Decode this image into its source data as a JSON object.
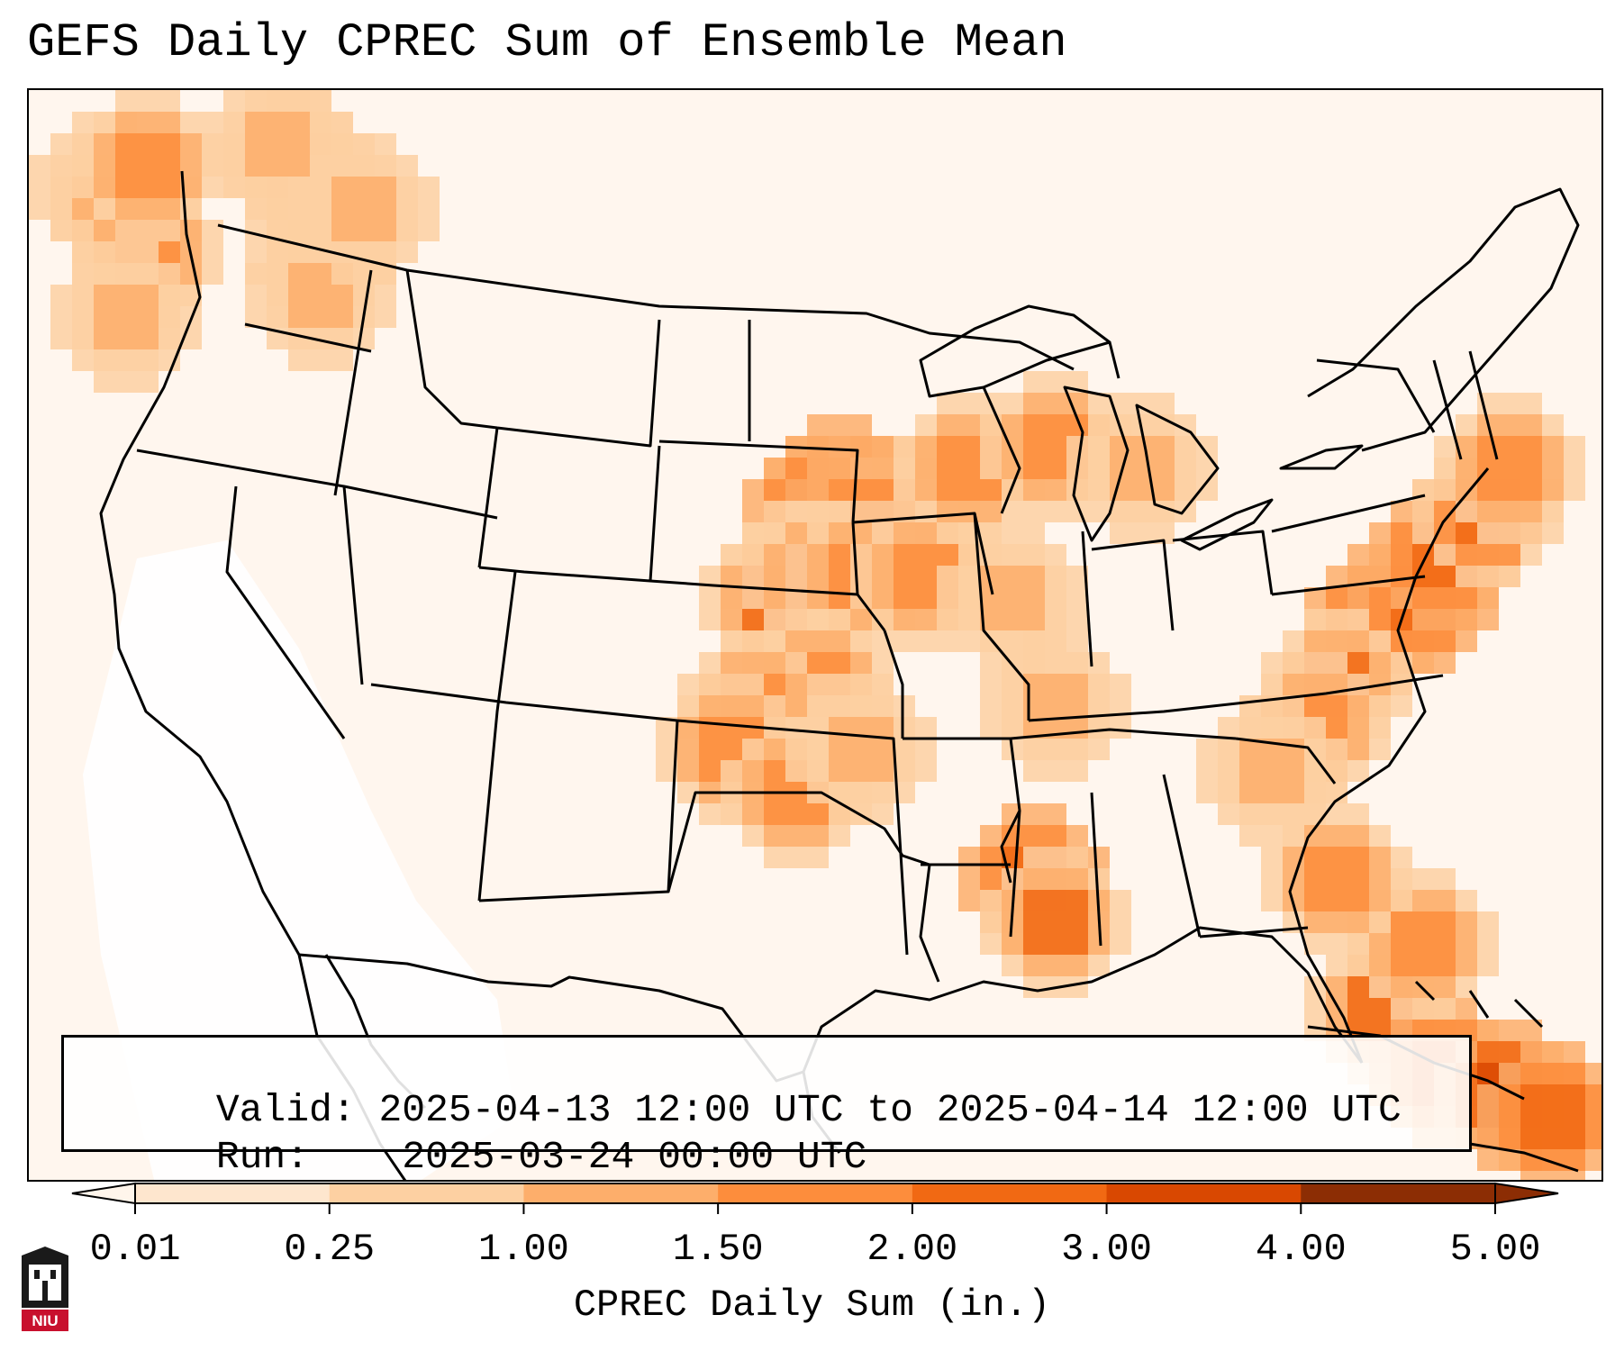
{
  "title": "GEFS Daily CPREC Sum of Ensemble Mean",
  "info": {
    "valid_label": "Valid:",
    "valid_value": "2025-04-13 12:00 UTC to 2025-04-14 12:00 UTC",
    "run_label": "Run:",
    "run_value": "2025-03-24 00:00 UTC"
  },
  "colorbar": {
    "label": "CPREC Daily Sum (in.)",
    "ticks": [
      "0.01",
      "0.25",
      "1.00",
      "1.50",
      "2.00",
      "3.00",
      "4.00",
      "5.00"
    ],
    "colors": [
      "#fff5eb",
      "#fee6ce",
      "#fdd0a2",
      "#fdae6b",
      "#fd8d3c",
      "#f16913",
      "#d94801",
      "#8c2d04"
    ],
    "extend": "both"
  },
  "logo": {
    "text": "NIU",
    "colors": {
      "red": "#c8102e",
      "black": "#1a1a1a"
    }
  },
  "map": {
    "projection": "Lambert conformal",
    "region": "Contiguous United States",
    "field": "CPREC daily sum",
    "precip_cells": [
      {
        "lon": -124.5,
        "lat": 48.5,
        "value": 1.4
      },
      {
        "lon": -123.5,
        "lat": 47.8,
        "value": 1.8
      },
      {
        "lon": -123.0,
        "lat": 46.5,
        "value": 1.5
      },
      {
        "lon": -122.8,
        "lat": 49.0,
        "value": 1.5
      },
      {
        "lon": -123.8,
        "lat": 44.5,
        "value": 1.1
      },
      {
        "lon": -116.5,
        "lat": 48.8,
        "value": 1.6
      },
      {
        "lon": -115.5,
        "lat": 46.5,
        "value": 1.4
      },
      {
        "lon": -116.0,
        "lat": 44.8,
        "value": 1.2
      },
      {
        "lon": -117.5,
        "lat": 49.5,
        "value": 1.3
      },
      {
        "lon": -114.0,
        "lat": 47.5,
        "value": 1.0
      },
      {
        "lon": -95.0,
        "lat": 38.6,
        "value": 2.6
      },
      {
        "lon": -96.0,
        "lat": 38.3,
        "value": 2.3
      },
      {
        "lon": -94.0,
        "lat": 38.0,
        "value": 2.5
      },
      {
        "lon": -92.5,
        "lat": 38.2,
        "value": 2.3
      },
      {
        "lon": -93.0,
        "lat": 37.3,
        "value": 2.2
      },
      {
        "lon": -94.5,
        "lat": 37.5,
        "value": 2.4
      },
      {
        "lon": -96.5,
        "lat": 36.0,
        "value": 2.2
      },
      {
        "lon": -97.5,
        "lat": 35.5,
        "value": 2.0
      },
      {
        "lon": -95.5,
        "lat": 36.5,
        "value": 2.1
      },
      {
        "lon": -94.5,
        "lat": 36.0,
        "value": 1.9
      },
      {
        "lon": -91.5,
        "lat": 36.2,
        "value": 1.6
      },
      {
        "lon": -89.5,
        "lat": 39.5,
        "value": 1.6
      },
      {
        "lon": -86.2,
        "lat": 40.0,
        "value": 1.7
      },
      {
        "lon": -96.0,
        "lat": 33.0,
        "value": 1.6
      },
      {
        "lon": -98.5,
        "lat": 32.5,
        "value": 1.5
      },
      {
        "lon": -99.5,
        "lat": 30.5,
        "value": 1.6
      },
      {
        "lon": -97.0,
        "lat": 29.5,
        "value": 1.5
      },
      {
        "lon": -94.0,
        "lat": 31.0,
        "value": 1.3
      },
      {
        "lon": -88.0,
        "lat": 35.5,
        "value": 1.3
      },
      {
        "lon": -86.0,
        "lat": 32.5,
        "value": 1.1
      },
      {
        "lon": -83.0,
        "lat": 39.5,
        "value": 1.1
      },
      {
        "lon": -87.0,
        "lat": 26.5,
        "value": 2.3
      },
      {
        "lon": -86.0,
        "lat": 25.5,
        "value": 2.1
      },
      {
        "lon": -73.5,
        "lat": 34.8,
        "value": 2.7
      },
      {
        "lon": -72.0,
        "lat": 35.5,
        "value": 2.5
      },
      {
        "lon": -70.5,
        "lat": 37.0,
        "value": 2.3
      },
      {
        "lon": -69.0,
        "lat": 38.0,
        "value": 2.2
      },
      {
        "lon": -75.0,
        "lat": 33.0,
        "value": 2.0
      },
      {
        "lon": -76.0,
        "lat": 31.5,
        "value": 1.7
      },
      {
        "lon": -77.5,
        "lat": 30.0,
        "value": 1.4
      },
      {
        "lon": -68.0,
        "lat": 39.5,
        "value": 1.8
      },
      {
        "lon": -73.5,
        "lat": 23.0,
        "value": 2.1
      },
      {
        "lon": -70.5,
        "lat": 21.0,
        "value": 2.6
      },
      {
        "lon": -68.5,
        "lat": 20.0,
        "value": 3.2
      },
      {
        "lon": -66.5,
        "lat": 19.5,
        "value": 2.4
      },
      {
        "lon": -72.0,
        "lat": 25.0,
        "value": 1.7
      },
      {
        "lon": -75.5,
        "lat": 26.5,
        "value": 1.5
      }
    ]
  }
}
